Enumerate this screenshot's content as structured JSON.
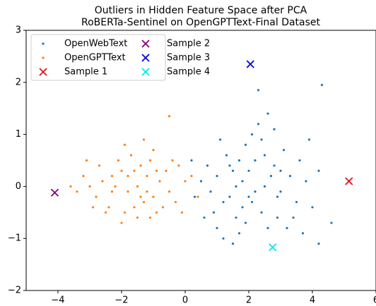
{
  "chart_data": {
    "type": "scatter",
    "title": "Outliers in Hidden Feature Space after PCA",
    "subtitle": "RoBERTa-Sentinel on OpenGPTText-Final Dataset",
    "xlim": [
      -5,
      6
    ],
    "ylim": [
      -2,
      3
    ],
    "xticks": [
      {
        "value": -4,
        "label": "−4"
      },
      {
        "value": -2,
        "label": "−2"
      },
      0,
      2,
      4,
      6
    ],
    "yticks": [
      {
        "value": -2,
        "label": "−2"
      },
      {
        "value": -1,
        "label": "−1"
      },
      0,
      1,
      2,
      3
    ],
    "legend": "upper left",
    "series": [
      {
        "name": "OpenWebText",
        "color": "#1f77b4",
        "marker": "dot",
        "x": [
          1.8,
          2.0,
          1.5,
          2.5,
          1.2,
          2.2,
          1.0,
          3.0,
          2.8,
          1.6,
          2.4,
          0.8,
          3.3,
          1.9,
          2.6,
          1.3,
          0.5,
          3.5,
          2.1,
          1.7,
          0.9,
          3.1,
          2.9,
          1.1,
          0.3,
          3.8,
          2.3,
          1.4,
          2.7,
          2.0,
          1.6,
          2.2,
          1.8,
          2.5,
          3.2,
          0.7,
          3.6,
          1.2,
          4.0,
          2.4,
          0.6,
          3.4,
          1.9,
          2.8,
          4.2,
          2.3,
          4.3,
          4.6,
          1.5,
          4.2,
          3.9,
          2.6,
          0.2,
          3.7,
          1.0,
          2.1,
          1.4,
          3.0,
          2.9,
          1.7
        ],
        "y": [
          0.1,
          -0.2,
          0.3,
          0.0,
          -0.3,
          0.5,
          0.2,
          -0.1,
          0.4,
          -0.6,
          -0.5,
          -0.1,
          0.2,
          0.8,
          -0.8,
          0.6,
          0.1,
          -0.3,
          1.0,
          -0.9,
          -0.5,
          0.7,
          -0.6,
          0.9,
          -0.2,
          0.1,
          1.2,
          -0.2,
          0.2,
          0.3,
          0.0,
          -0.1,
          -0.4,
          0.6,
          -0.8,
          0.4,
          0.5,
          -1.0,
          -0.4,
          0.9,
          -0.6,
          -0.6,
          -0.7,
          1.1,
          0.3,
          1.85,
          1.95,
          -0.7,
          -1.1,
          -1.1,
          0.9,
          1.4,
          0.5,
          -0.9,
          -0.8,
          -0.3,
          0.4,
          0.3,
          -0.2,
          0.5
        ]
      },
      {
        "name": "OpenGPTText",
        "color": "#ff7f0e",
        "marker": "dot",
        "x": [
          -1.5,
          -1.2,
          -1.8,
          -2.0,
          -1.0,
          -2.3,
          -0.8,
          -1.6,
          -1.4,
          -2.6,
          -0.5,
          -1.9,
          -1.1,
          -2.8,
          -0.6,
          -1.3,
          -2.1,
          -3.0,
          -0.3,
          -1.7,
          -2.4,
          -0.9,
          -3.2,
          -1.5,
          0.0,
          -2.2,
          -1.0,
          -2.7,
          -0.4,
          -1.8,
          -1.2,
          -2.5,
          -0.7,
          -3.4,
          -1.6,
          -0.2,
          0.4,
          -2.9,
          -0.5,
          -1.3,
          -2.0,
          -0.1,
          -1.9,
          -3.1,
          -0.9,
          -1.4,
          -2.3,
          -1.1,
          0.2,
          -3.6
        ],
        "y": [
          0.0,
          0.2,
          -0.1,
          0.3,
          -0.2,
          -0.1,
          0.1,
          -0.4,
          0.4,
          0.1,
          -0.1,
          -0.5,
          0.5,
          -0.2,
          0.3,
          -0.3,
          0.5,
          0.0,
          -0.3,
          0.6,
          -0.4,
          -0.5,
          0.2,
          -0.6,
          0.1,
          0.0,
          0.7,
          0.4,
          0.5,
          0.2,
          -0.1,
          -0.5,
          -0.4,
          -0.1,
          0.3,
          0.4,
          -0.2,
          -0.4,
          1.35,
          0.9,
          -0.7,
          -0.5,
          0.8,
          0.5,
          0.3,
          -0.2,
          0.2,
          -0.6,
          0.2,
          0.0
        ]
      },
      {
        "name": "Sample 1",
        "color": "#e8101a",
        "marker": "x",
        "x": [
          5.15
        ],
        "y": [
          0.1
        ]
      },
      {
        "name": "Sample 2",
        "color": "#800080",
        "marker": "x",
        "x": [
          -4.1
        ],
        "y": [
          -0.12
        ]
      },
      {
        "name": "Sample 3",
        "color": "#0000e0",
        "marker": "x",
        "x": [
          2.05
        ],
        "y": [
          2.35
        ]
      },
      {
        "name": "Sample 4",
        "color": "#00e8e8",
        "marker": "x",
        "x": [
          2.75
        ],
        "y": [
          -1.17
        ]
      }
    ]
  }
}
